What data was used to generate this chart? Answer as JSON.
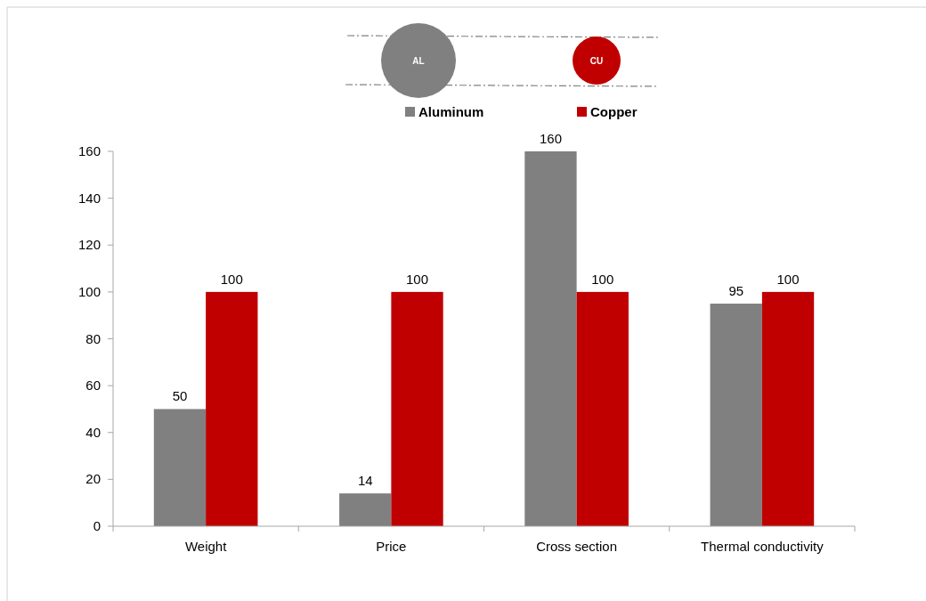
{
  "chart_data": {
    "type": "bar",
    "categories": [
      "Weight",
      "Price",
      "Cross section",
      "Thermal conductivity"
    ],
    "series": [
      {
        "name": "Aluminum",
        "color": "#808080",
        "values": [
          50,
          14,
          160,
          95
        ]
      },
      {
        "name": "Copper",
        "color": "#c00000",
        "values": [
          100,
          100,
          100,
          100
        ]
      }
    ],
    "ylim": [
      0,
      160
    ],
    "yticks": [
      0,
      20,
      40,
      60,
      80,
      100,
      120,
      140,
      160
    ],
    "data_labels": true,
    "grid": false,
    "legend": "top",
    "annotations": [
      "AL",
      "CU"
    ]
  }
}
